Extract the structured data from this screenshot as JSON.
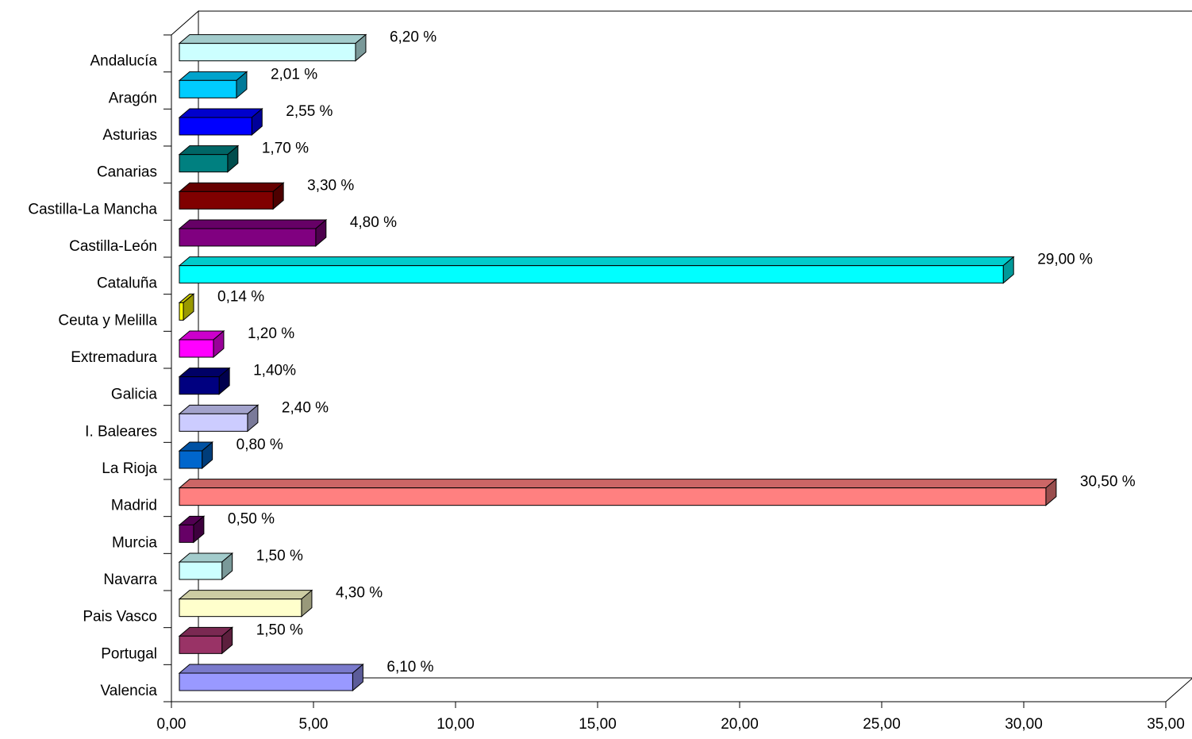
{
  "chart_data": {
    "type": "bar",
    "orientation": "horizontal",
    "style": "3d",
    "title": "",
    "xlabel": "",
    "ylabel": "",
    "xlim": [
      0,
      35
    ],
    "x_ticks": [
      0,
      5,
      10,
      15,
      20,
      25,
      30,
      35
    ],
    "x_tick_labels": [
      "0,00",
      "5,00",
      "10,00",
      "15,00",
      "20,00",
      "25,00",
      "30,00",
      "35,00"
    ],
    "grid": false,
    "legend": "none",
    "categories": [
      "Andalucía",
      "Aragón",
      "Asturias",
      "Canarias",
      "Castilla-La Mancha",
      "Castilla-León",
      "Cataluña",
      "Ceuta y Melilla",
      "Extremadura",
      "Galicia",
      "I. Baleares",
      "La Rioja",
      "Madrid",
      "Murcia",
      "Navarra",
      "Pais Vasco",
      "Portugal",
      "Valencia"
    ],
    "values": [
      6.2,
      2.01,
      2.55,
      1.7,
      3.3,
      4.8,
      29.0,
      0.14,
      1.2,
      1.4,
      2.4,
      0.8,
      30.5,
      0.5,
      1.5,
      4.3,
      1.5,
      6.1
    ],
    "data_labels": [
      "6,20 %",
      "2,01 %",
      "2,55 %",
      "1,70 %",
      "3,30 %",
      "4,80 %",
      "29,00 %",
      "0,14 %",
      "1,20 %",
      "1,40%",
      "2,40 %",
      "0,80 %",
      "30,50 %",
      "0,50 %",
      "1,50 %",
      "4,30 %",
      "1,50 %",
      "6,10 %"
    ],
    "colors": [
      "#CCFFFF",
      "#00CCFF",
      "#0000FF",
      "#008080",
      "#800000",
      "#800080",
      "#00FFFF",
      "#FFFF00",
      "#FF00FF",
      "#000080",
      "#CCCCFF",
      "#0066CC",
      "#FF8080",
      "#660066",
      "#CCFFFF",
      "#FFFFCC",
      "#993366",
      "#9999FF"
    ]
  }
}
